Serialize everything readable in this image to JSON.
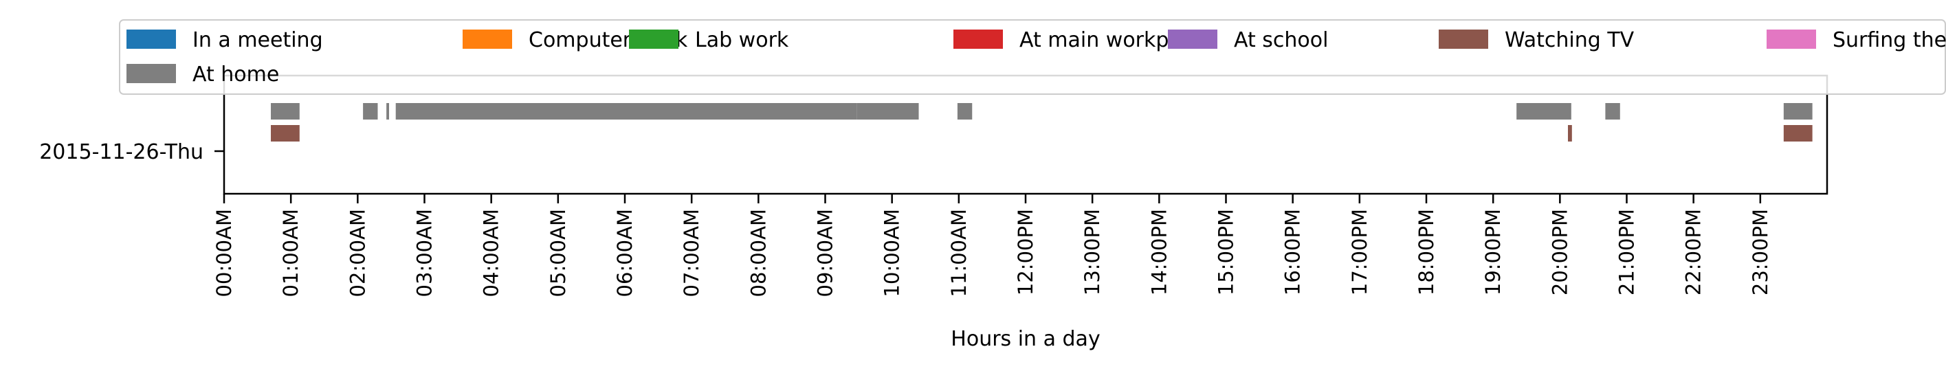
{
  "chart_data": {
    "type": "timeline",
    "title": "",
    "xlabel": "Hours in a day",
    "ylabel": "",
    "xlim": [
      0,
      24
    ],
    "grid": false,
    "legend_position": "top",
    "y_categories": [
      "2015-11-26-Thu"
    ],
    "x_ticks": [
      {
        "value": 0,
        "label": "00:00AM"
      },
      {
        "value": 1,
        "label": "01:00AM"
      },
      {
        "value": 2,
        "label": "02:00AM"
      },
      {
        "value": 3,
        "label": "03:00AM"
      },
      {
        "value": 4,
        "label": "04:00AM"
      },
      {
        "value": 5,
        "label": "05:00AM"
      },
      {
        "value": 6,
        "label": "06:00AM"
      },
      {
        "value": 7,
        "label": "07:00AM"
      },
      {
        "value": 8,
        "label": "08:00AM"
      },
      {
        "value": 9,
        "label": "09:00AM"
      },
      {
        "value": 10,
        "label": "10:00AM"
      },
      {
        "value": 11,
        "label": "11:00AM"
      },
      {
        "value": 12,
        "label": "12:00PM"
      },
      {
        "value": 13,
        "label": "13:00PM"
      },
      {
        "value": 14,
        "label": "14:00PM"
      },
      {
        "value": 15,
        "label": "15:00PM"
      },
      {
        "value": 16,
        "label": "16:00PM"
      },
      {
        "value": 17,
        "label": "17:00PM"
      },
      {
        "value": 18,
        "label": "18:00PM"
      },
      {
        "value": 19,
        "label": "19:00PM"
      },
      {
        "value": 20,
        "label": "20:00PM"
      },
      {
        "value": 21,
        "label": "21:00PM"
      },
      {
        "value": 22,
        "label": "22:00PM"
      },
      {
        "value": 23,
        "label": "23:00PM"
      }
    ],
    "series": [
      {
        "name": "In a meeting",
        "color": "#1f77b4",
        "segments": []
      },
      {
        "name": "Computer work",
        "color": "#ff7f0e",
        "segments": []
      },
      {
        "name": "Lab work",
        "color": "#2ca02c",
        "segments": []
      },
      {
        "name": "At main workplace",
        "color": "#d62728",
        "segments": []
      },
      {
        "name": "At school",
        "color": "#9467bd",
        "segments": []
      },
      {
        "name": "Watching TV",
        "color": "#8c564b",
        "segments": [
          {
            "day": 0,
            "start": 0.7,
            "end": 1.13
          },
          {
            "day": 0,
            "start": 20.12,
            "end": 20.18
          },
          {
            "day": 0,
            "start": 23.35,
            "end": 23.78
          }
        ]
      },
      {
        "name": "Surfing the internet",
        "color": "#e377c2",
        "segments": []
      },
      {
        "name": "At home",
        "color": "#7f7f7f",
        "segments": [
          {
            "day": 0,
            "start": 0.7,
            "end": 1.13
          },
          {
            "day": 0,
            "start": 2.08,
            "end": 2.3
          },
          {
            "day": 0,
            "start": 2.43,
            "end": 2.47
          },
          {
            "day": 0,
            "start": 2.57,
            "end": 9.47
          },
          {
            "day": 0,
            "start": 9.47,
            "end": 10.4
          },
          {
            "day": 0,
            "start": 10.98,
            "end": 11.2
          },
          {
            "day": 0,
            "start": 19.35,
            "end": 20.17
          },
          {
            "day": 0,
            "start": 20.68,
            "end": 20.9
          },
          {
            "day": 0,
            "start": 23.35,
            "end": 23.78
          }
        ]
      }
    ]
  }
}
